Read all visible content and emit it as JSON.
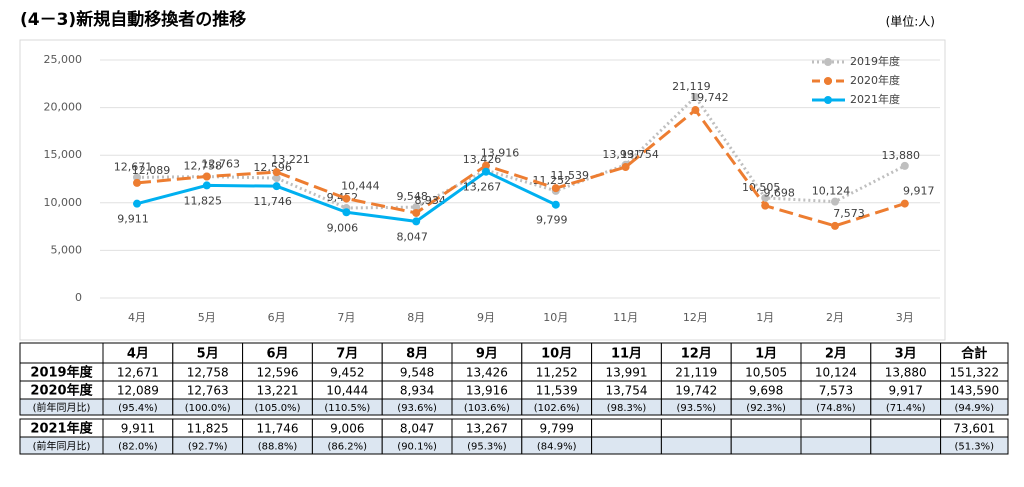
{
  "title": "(4－3)新規自動移換者の推移",
  "unit": "(単位:人)",
  "chart_data": {
    "type": "line",
    "categories": [
      "4月",
      "5月",
      "6月",
      "7月",
      "8月",
      "9月",
      "10月",
      "11月",
      "12月",
      "1月",
      "2月",
      "3月"
    ],
    "ylim": [
      0,
      25000
    ],
    "yticks": [
      0,
      {
        "value": 5000,
        "label": "5,000"
      },
      {
        "value": 10000,
        "label": "10,000"
      },
      {
        "value": 15000,
        "label": "15,000"
      },
      {
        "value": 20000,
        "label": "20,000"
      },
      {
        "value": 25000,
        "label": "25,000"
      }
    ],
    "grid": true,
    "legend": "upper right",
    "series": [
      {
        "name": "2019年度",
        "color": "#bfbfbf",
        "style": "dotted",
        "values": [
          12671,
          12758,
          12596,
          9452,
          9548,
          13426,
          11252,
          13991,
          21119,
          10505,
          10124,
          13880
        ],
        "value_labels": [
          "12,671",
          "12,758",
          "12,596",
          "9,452",
          "9,548",
          "13,426",
          "11,252",
          "13,991",
          "21,119",
          "10,505",
          "10,124",
          "13,880"
        ]
      },
      {
        "name": "2020年度",
        "color": "#ed7d31",
        "style": "dashed",
        "values": [
          12089,
          12763,
          13221,
          10444,
          8934,
          13916,
          11539,
          13754,
          19742,
          9698,
          7573,
          9917
        ],
        "value_labels": [
          "12,089",
          "12,763",
          "13,221",
          "10,444",
          "8,934",
          "13,916",
          "11,539",
          "13,754",
          "19,742",
          "9,698",
          "7,573",
          "9,917"
        ]
      },
      {
        "name": "2021年度",
        "color": "#00b0f0",
        "style": "solid",
        "values": [
          9911,
          11825,
          11746,
          9006,
          8047,
          13267,
          9799,
          null,
          null,
          null,
          null,
          null
        ],
        "value_labels": [
          "9,911",
          "11,825",
          "11,746",
          "9,006",
          "8,047",
          "13,267",
          "9,799",
          null,
          null,
          null,
          null,
          null
        ]
      }
    ]
  },
  "table": {
    "total_header": "合計",
    "totals": [
      "151,322",
      "143,590",
      "73,601"
    ],
    "ratio_label": "(前年同月比)",
    "ratios_2020": [
      "(95.4%)",
      "(100.0%)",
      "(105.0%)",
      "(110.5%)",
      "(93.6%)",
      "(103.6%)",
      "(102.6%)",
      "(98.3%)",
      "(93.5%)",
      "(92.3%)",
      "(74.8%)",
      "(71.4%)"
    ],
    "ratio_total_2020": "(94.9%)",
    "ratios_2021": [
      "(82.0%)",
      "(92.7%)",
      "(88.8%)",
      "(86.2%)",
      "(90.1%)",
      "(95.3%)",
      "(84.9%)"
    ],
    "ratio_total_2021": "(51.3%)"
  }
}
